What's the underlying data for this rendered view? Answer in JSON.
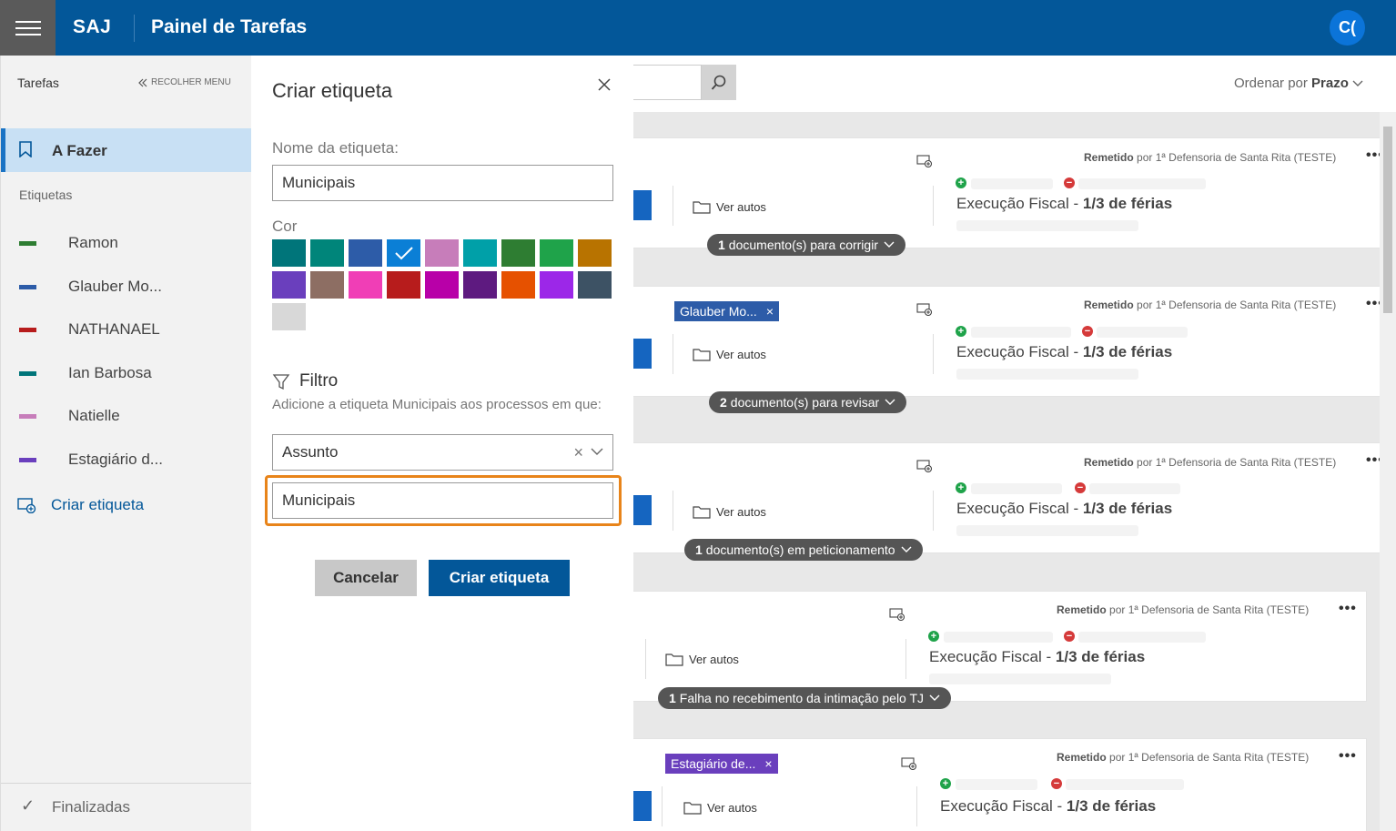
{
  "header": {
    "brand": "SAJ",
    "title": "Painel de Tarefas",
    "avatar": "C("
  },
  "sidebar": {
    "section_title": "Tarefas",
    "collapse_label": "RECOLHER MENU",
    "active_item": "A Fazer",
    "labels_title": "Etiquetas",
    "tags": [
      {
        "name": "Ramon",
        "color": "#2e7d32"
      },
      {
        "name": "Glauber Mo...",
        "color": "#2d5ca8"
      },
      {
        "name": "NATHANAEL",
        "color": "#b71c1c"
      },
      {
        "name": "Ian Barbosa",
        "color": "#00757a"
      },
      {
        "name": "Natielle",
        "color": "#c77dba"
      },
      {
        "name": "Estagiário d...",
        "color": "#6a3fbd"
      }
    ],
    "create_label": "Criar etiqueta",
    "finished": "Finalizadas"
  },
  "main": {
    "order_label": "Ordenar por",
    "order_value": "Prazo",
    "ver_autos": "Ver autos",
    "remetido": "Remetido",
    "remetido_por": "por 1ª Defensoria de Santa Rita (TESTE)",
    "exec_class": "Execução Fiscal",
    "exec_sep": " - ",
    "exec_detail": "1/3 de férias",
    "cards": [
      {
        "pill_n": "1",
        "pill_text": "documento(s) para corrigir",
        "badge": ""
      },
      {
        "pill_n": "2",
        "pill_text": "documento(s) para revisar",
        "badge": "Glauber Mo..."
      },
      {
        "pill_n": "1",
        "pill_text": "documento(s) em peticionamento",
        "badge": ""
      },
      {
        "pill_n": "1",
        "pill_text": "Falha no recebimento da intimação pelo TJ",
        "badge": ""
      },
      {
        "pill_n": "",
        "pill_text": "",
        "badge": "Estagiário de..."
      }
    ]
  },
  "dialog": {
    "title": "Criar etiqueta",
    "name_label": "Nome da etiqueta:",
    "name_value": "Municipais",
    "color_label": "Cor",
    "colors": [
      "#00757a",
      "#00857a",
      "#2d5ca8",
      "#0b7fd6",
      "#c77dba",
      "#00a0a8",
      "#2e7d32",
      "#1fa34a",
      "#b87300",
      "#6a3fbd",
      "#8d6e63",
      "#f03eb6",
      "#b71c1c",
      "#b800a8",
      "#5e1a80",
      "#e65100",
      "#9c27e8",
      "#3d5264",
      "#d8d8d8"
    ],
    "selected_color_index": 3,
    "filter_title": "Filtro",
    "filter_desc": "Adicione a etiqueta Municipais aos processos em que:",
    "filter_field": "Assunto",
    "filter_value": "Municipais",
    "cancel": "Cancelar",
    "create": "Criar etiqueta"
  }
}
